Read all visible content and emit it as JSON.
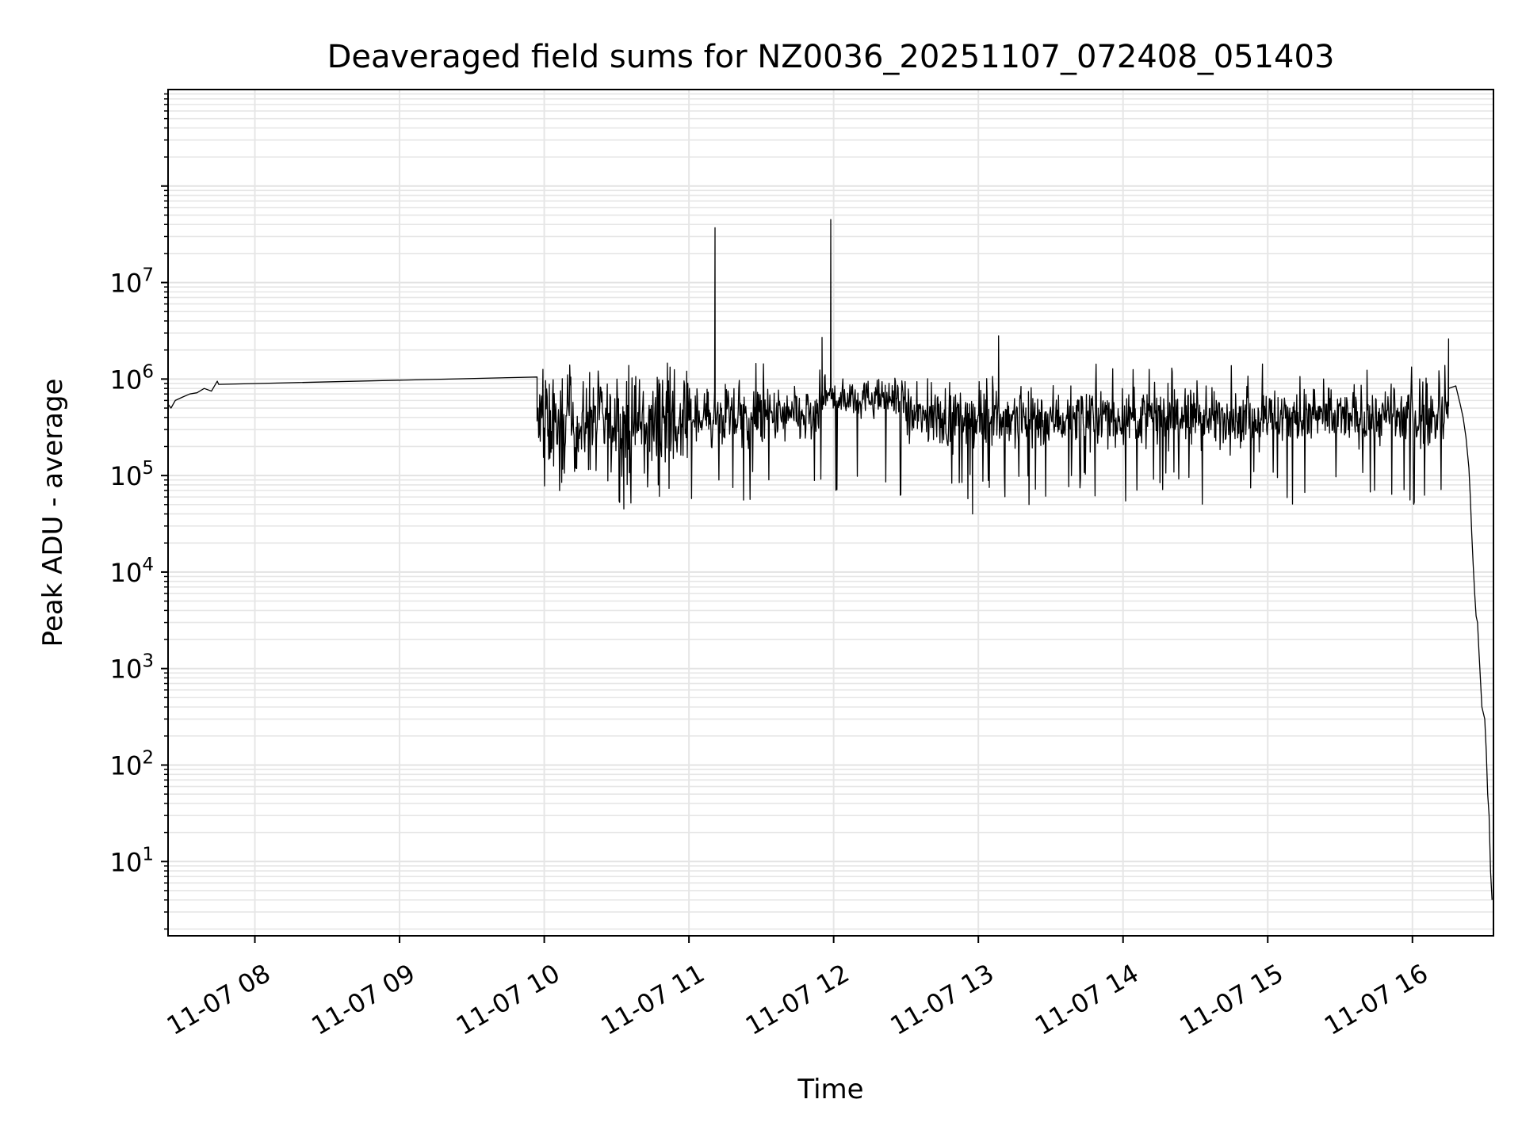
{
  "chart_data": {
    "type": "line",
    "title": "Deaveraged field sums for NZ0036_20251107_072408_051403",
    "xlabel": "Time",
    "ylabel": "Peak ADU - average",
    "yscale": "log",
    "grid": true,
    "ylim": [
      1.7,
      1000000000
    ],
    "xlim_hours": [
      7.4,
      16.56
    ],
    "x_ticks": [
      {
        "hour": 8,
        "label": "11-07 08"
      },
      {
        "hour": 9,
        "label": "11-07 09"
      },
      {
        "hour": 10,
        "label": "11-07 10"
      },
      {
        "hour": 11,
        "label": "11-07 11"
      },
      {
        "hour": 12,
        "label": "11-07 12"
      },
      {
        "hour": 13,
        "label": "11-07 13"
      },
      {
        "hour": 14,
        "label": "11-07 14"
      },
      {
        "hour": 15,
        "label": "11-07 15"
      },
      {
        "hour": 16,
        "label": "11-07 16"
      }
    ],
    "y_ticks": [
      {
        "exp": 1,
        "base": "10",
        "sup": "1"
      },
      {
        "exp": 2,
        "base": "10",
        "sup": "2"
      },
      {
        "exp": 3,
        "base": "10",
        "sup": "3"
      },
      {
        "exp": 4,
        "base": "10",
        "sup": "4"
      },
      {
        "exp": 5,
        "base": "10",
        "sup": "5"
      },
      {
        "exp": 6,
        "base": "10",
        "sup": "6"
      },
      {
        "exp": 7,
        "base": "10",
        "sup": "7"
      }
    ],
    "series": [
      {
        "name": "peak_adu_minus_average",
        "color": "#000000",
        "anchor_points": [
          [
            7.4,
            550000
          ],
          [
            7.42,
            500000
          ],
          [
            7.45,
            600000
          ],
          [
            7.5,
            650000
          ],
          [
            7.55,
            700000
          ],
          [
            7.6,
            720000
          ],
          [
            7.65,
            800000
          ],
          [
            7.7,
            750000
          ],
          [
            7.74,
            950000
          ],
          [
            7.75,
            880000
          ],
          [
            9.95,
            1050000
          ]
        ],
        "spikes": [
          [
            11.18,
            37000000
          ],
          [
            11.98,
            45000000
          ],
          [
            11.92,
            2700000
          ],
          [
            13.14,
            2800000
          ],
          [
            16.25,
            2600000
          ],
          [
            12.96,
            40000
          ],
          [
            10.55,
            45000
          ]
        ],
        "tail_points": [
          [
            16.25,
            800000
          ],
          [
            16.3,
            850000
          ],
          [
            16.33,
            550000
          ],
          [
            16.35,
            400000
          ],
          [
            16.37,
            250000
          ],
          [
            16.39,
            120000
          ],
          [
            16.4,
            60000
          ],
          [
            16.41,
            25000
          ],
          [
            16.42,
            12000
          ],
          [
            16.43,
            6000
          ],
          [
            16.44,
            3500
          ],
          [
            16.45,
            3000
          ],
          [
            16.46,
            1500
          ],
          [
            16.48,
            400
          ],
          [
            16.5,
            300
          ],
          [
            16.51,
            140
          ],
          [
            16.52,
            50
          ],
          [
            16.53,
            30
          ],
          [
            16.54,
            8
          ],
          [
            16.55,
            4
          ]
        ],
        "noise_band": {
          "start_hour": 9.95,
          "end_hour": 16.25,
          "typical_value": 400000,
          "min_value": 50000,
          "max_value": 1500000,
          "samples": 1700
        }
      }
    ]
  }
}
